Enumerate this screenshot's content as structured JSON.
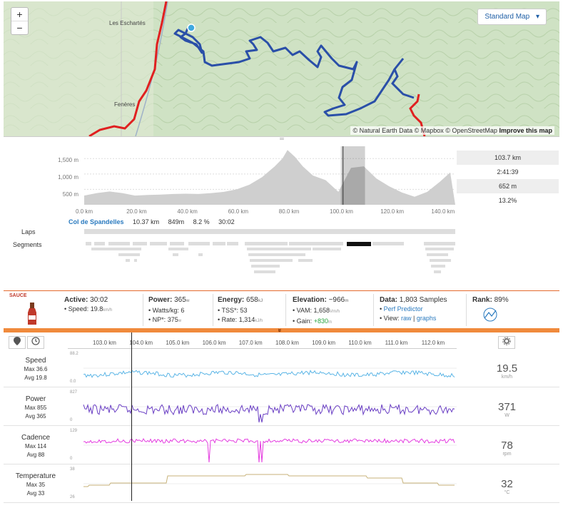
{
  "map": {
    "zoom_in": "+",
    "zoom_out": "−",
    "map_type": "Standard Map",
    "attribution_prefix": "© Natural Earth Data © Mapbox © OpenStreetMap",
    "attribution_link": "Improve this map",
    "place_labels": [
      "Les Eschartés",
      "Fenères"
    ]
  },
  "elevation": {
    "y_ticks": [
      "1,500 m",
      "1,000 m",
      "500 m"
    ],
    "x_ticks": [
      "0.0 km",
      "20.0 km",
      "40.0 km",
      "60.0 km",
      "80.0 km",
      "100.0 km",
      "120.0 km",
      "140.0 km"
    ],
    "stats": [
      "103.7 km",
      "2:41:39",
      "652 m",
      "13.2%"
    ],
    "profile_km": [
      0,
      5,
      10,
      15,
      20,
      25,
      30,
      35,
      40,
      45,
      50,
      55,
      60,
      65,
      70,
      75,
      78,
      80,
      83,
      86,
      90,
      95,
      100,
      105,
      110,
      115,
      120,
      125,
      130,
      135,
      140,
      144
    ],
    "profile_m": [
      300,
      380,
      430,
      380,
      300,
      320,
      330,
      350,
      360,
      350,
      380,
      420,
      500,
      650,
      900,
      1250,
      1500,
      1780,
      1550,
      1250,
      950,
      800,
      420,
      1200,
      1250,
      850,
      600,
      400,
      260,
      420,
      750,
      1050
    ],
    "selection_km": [
      101,
      110.5
    ]
  },
  "segment": {
    "name": "Col de Spandelles",
    "distance": "10.37 km",
    "gain": "849m",
    "grade": "8.2 %",
    "time": "30:02"
  },
  "labels": {
    "laps": "Laps",
    "segments": "Segments"
  },
  "stats": {
    "sauce": "SAUCE",
    "active_label": "Active:",
    "active_value": "30:02",
    "speed_label": "• Speed:",
    "speed_value": "19.8",
    "speed_unit": "km/h",
    "power_label": "Power:",
    "power_value": "365",
    "power_unit": "w",
    "wkg_label": "• Watts/kg:",
    "wkg_value": "6",
    "np_label": "• NP*:",
    "np_value": "375",
    "np_unit": "w",
    "energy_label": "Energy:",
    "energy_value": "658",
    "energy_unit": "kJ",
    "tss_label": "• TSS*:",
    "tss_value": "53",
    "rate_label": "• Rate:",
    "rate_value": "1,314",
    "rate_unit": "kJ/h",
    "elev_label": "Elevation:",
    "elev_value": "~966",
    "elev_unit": "m",
    "vam_label": "• VAM:",
    "vam_value": "1,658",
    "vam_unit": "Vm/h",
    "gain_label": "• Gain:",
    "gain_value": "+830",
    "gain_unit": "m",
    "data_label": "Data:",
    "data_value": "1,803 Samples",
    "perf_predictor": "Perf Predictor",
    "view_label": "• View:",
    "view_raw": "raw",
    "view_sep": "|",
    "view_graphs": "graphs",
    "rank_label": "Rank:",
    "rank_value": "89%",
    "expand": "»"
  },
  "streams": {
    "x_ticks": [
      "103.0 km",
      "104.0 km",
      "105.0 km",
      "106.0 km",
      "107.0 km",
      "108.0 km",
      "109.0 km",
      "110.0 km",
      "111.0 km",
      "112.0 km"
    ],
    "rows": [
      {
        "name": "Speed",
        "max": "Max 36.6",
        "avg": "Avg 19.8",
        "value": "19.5",
        "unit": "km/h",
        "ytop": "88.2",
        "ybot": "0.0",
        "color": "#5bb5e6"
      },
      {
        "name": "Power",
        "max": "Max 855",
        "avg": "Avg 365",
        "value": "371",
        "unit": "W",
        "ytop": "827",
        "ybot": "0",
        "color": "#6a3fc4"
      },
      {
        "name": "Cadence",
        "max": "Max 114",
        "avg": "Avg 88",
        "value": "78",
        "unit": "rpm",
        "ytop": "129",
        "ybot": "0",
        "color": "#e43ce0"
      },
      {
        "name": "Temperature",
        "max": "Max 35",
        "avg": "Avg 33",
        "value": "32",
        "unit": "°C",
        "ytop": "38",
        "ybot": "26",
        "color": "#c7b278"
      }
    ]
  },
  "colors": {
    "route_blue": "#2a4fa8",
    "route_red": "#e02020",
    "accent_orange": "#e46b2e",
    "link_blue": "#2a7abf"
  }
}
